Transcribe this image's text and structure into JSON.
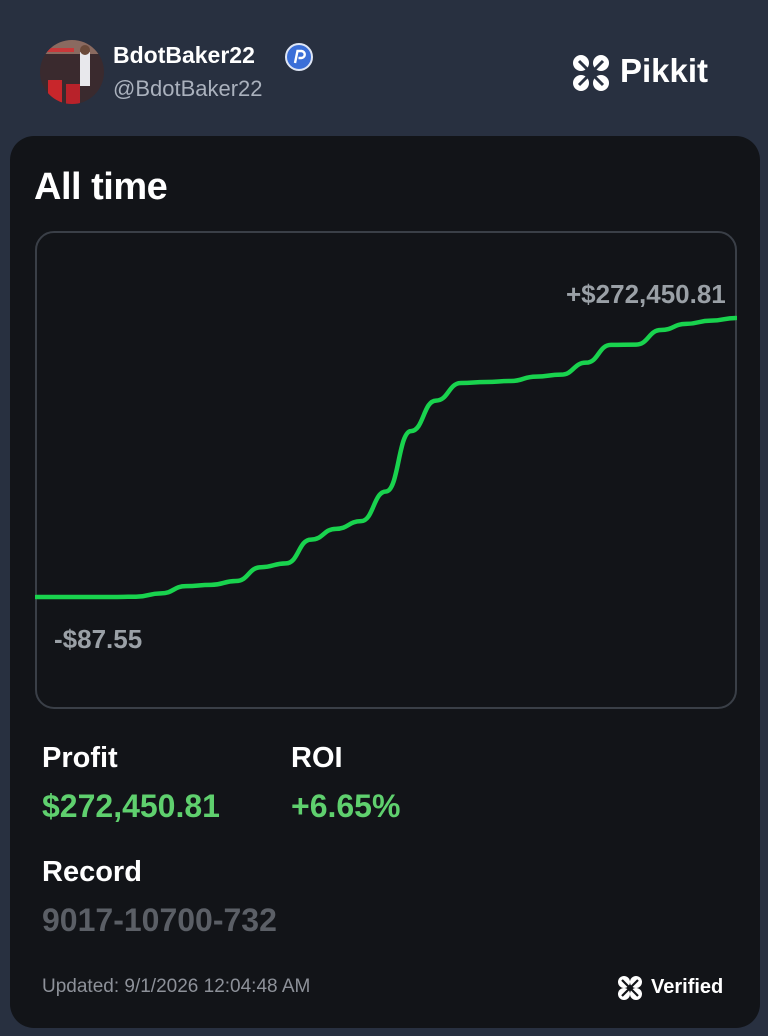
{
  "header": {
    "name": "BdotBaker22",
    "handle": "@BdotBaker22",
    "brand": "Pikkit"
  },
  "card": {
    "title": "All time",
    "stats": {
      "profit": {
        "label": "Profit",
        "value": "$272,450.81"
      },
      "roi": {
        "label": "ROI",
        "value": "+6.65%"
      },
      "record": {
        "label": "Record",
        "value": "9017-10700-732"
      }
    },
    "updated": "Updated: 9/1/2026 12:04:48 AM",
    "verified": "Verified"
  },
  "chart_data": {
    "type": "line",
    "color": "#19d34e",
    "values": [
      -87.55,
      -80,
      -80,
      -60,
      200,
      3500,
      10500,
      11800,
      15500,
      29000,
      32800,
      56000,
      66500,
      74000,
      103000,
      162000,
      191800,
      208900,
      209900,
      210900,
      215200,
      217100,
      228800,
      246200,
      246500,
      260700,
      266700,
      269900,
      272450.81
    ],
    "value_labels": [
      "-$87.55",
      null,
      null,
      null,
      null,
      null,
      null,
      null,
      null,
      null,
      null,
      null,
      null,
      null,
      null,
      null,
      null,
      null,
      null,
      null,
      null,
      null,
      null,
      null,
      null,
      null,
      null,
      null,
      "+$272,450.81"
    ]
  }
}
